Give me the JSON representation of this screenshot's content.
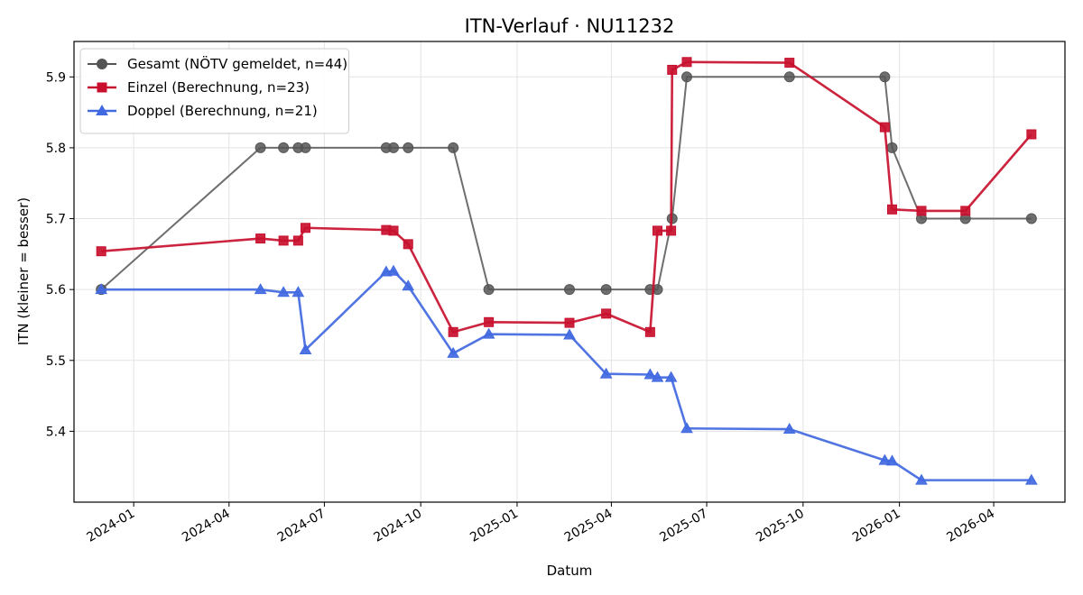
{
  "chart_data": {
    "type": "line",
    "title": "ITN-Verlauf · NU11232",
    "xlabel": "Datum",
    "ylabel": "ITN  (kleiner = besser)",
    "x_range": [
      "2023-11-05",
      "2026-06-08"
    ],
    "ylim": [
      5.3,
      5.95
    ],
    "x_ticks": [
      "2024-01",
      "2024-04",
      "2024-07",
      "2024-10",
      "2025-01",
      "2025-04",
      "2025-07",
      "2025-10",
      "2026-01",
      "2026-04"
    ],
    "y_ticks": [
      5.4,
      5.5,
      5.6,
      5.7,
      5.8,
      5.9
    ],
    "grid": true,
    "legend_position": "top-left",
    "series": [
      {
        "name": "Gesamt (NÖTV gemeldet, n=44)",
        "color": "#555555",
        "marker": "circle",
        "points": [
          [
            "2023-12-01",
            5.6
          ],
          [
            "2024-05-01",
            5.8
          ],
          [
            "2024-05-23",
            5.8
          ],
          [
            "2024-06-06",
            5.8
          ],
          [
            "2024-06-13",
            5.8
          ],
          [
            "2024-08-29",
            5.8
          ],
          [
            "2024-09-05",
            5.8
          ],
          [
            "2024-09-19",
            5.8
          ],
          [
            "2024-11-01",
            5.8
          ],
          [
            "2024-12-05",
            5.6
          ],
          [
            "2025-02-20",
            5.6
          ],
          [
            "2025-03-27",
            5.6
          ],
          [
            "2025-05-08",
            5.6
          ],
          [
            "2025-05-15",
            5.6
          ],
          [
            "2025-05-29",
            5.7
          ],
          [
            "2025-06-12",
            5.9
          ],
          [
            "2025-09-18",
            5.9
          ],
          [
            "2025-12-18",
            5.9
          ],
          [
            "2025-12-25",
            5.8
          ],
          [
            "2026-01-22",
            5.7
          ],
          [
            "2026-03-05",
            5.7
          ],
          [
            "2026-05-07",
            5.7
          ]
        ]
      },
      {
        "name": "Einzel (Berechnung, n=23)",
        "color": "#c8102e",
        "marker": "square",
        "points": [
          [
            "2023-12-01",
            5.654
          ],
          [
            "2024-05-01",
            5.672
          ],
          [
            "2024-05-23",
            5.669
          ],
          [
            "2024-06-06",
            5.669
          ],
          [
            "2024-06-13",
            5.687
          ],
          [
            "2024-08-29",
            5.684
          ],
          [
            "2024-09-05",
            5.683
          ],
          [
            "2024-09-19",
            5.664
          ],
          [
            "2024-11-01",
            5.54
          ],
          [
            "2024-12-05",
            5.554
          ],
          [
            "2025-02-20",
            5.553
          ],
          [
            "2025-03-27",
            5.566
          ],
          [
            "2025-05-08",
            5.54
          ],
          [
            "2025-05-15",
            5.683
          ],
          [
            "2025-05-28",
            5.683
          ],
          [
            "2025-05-29",
            5.91
          ],
          [
            "2025-06-12",
            5.921
          ],
          [
            "2025-09-18",
            5.92
          ],
          [
            "2025-12-18",
            5.829
          ],
          [
            "2025-12-25",
            5.713
          ],
          [
            "2026-01-22",
            5.711
          ],
          [
            "2026-03-05",
            5.711
          ],
          [
            "2026-05-07",
            5.819
          ]
        ]
      },
      {
        "name": "Doppel (Berechnung, n=21)",
        "color": "#4169e1",
        "marker": "triangle",
        "points": [
          [
            "2023-12-01",
            5.6
          ],
          [
            "2024-05-01",
            5.6
          ],
          [
            "2024-05-23",
            5.596
          ],
          [
            "2024-06-06",
            5.596
          ],
          [
            "2024-06-13",
            5.515
          ],
          [
            "2024-08-29",
            5.625
          ],
          [
            "2024-09-05",
            5.626
          ],
          [
            "2024-09-19",
            5.605
          ],
          [
            "2024-11-01",
            5.51
          ],
          [
            "2024-12-05",
            5.537
          ],
          [
            "2025-02-20",
            5.536
          ],
          [
            "2025-03-27",
            5.481
          ],
          [
            "2025-05-08",
            5.48
          ],
          [
            "2025-05-15",
            5.476
          ],
          [
            "2025-05-28",
            5.476
          ],
          [
            "2025-06-12",
            5.404
          ],
          [
            "2025-09-18",
            5.403
          ],
          [
            "2025-12-18",
            5.359
          ],
          [
            "2025-12-25",
            5.358
          ],
          [
            "2026-01-22",
            5.331
          ],
          [
            "2026-05-07",
            5.331
          ]
        ]
      }
    ]
  }
}
